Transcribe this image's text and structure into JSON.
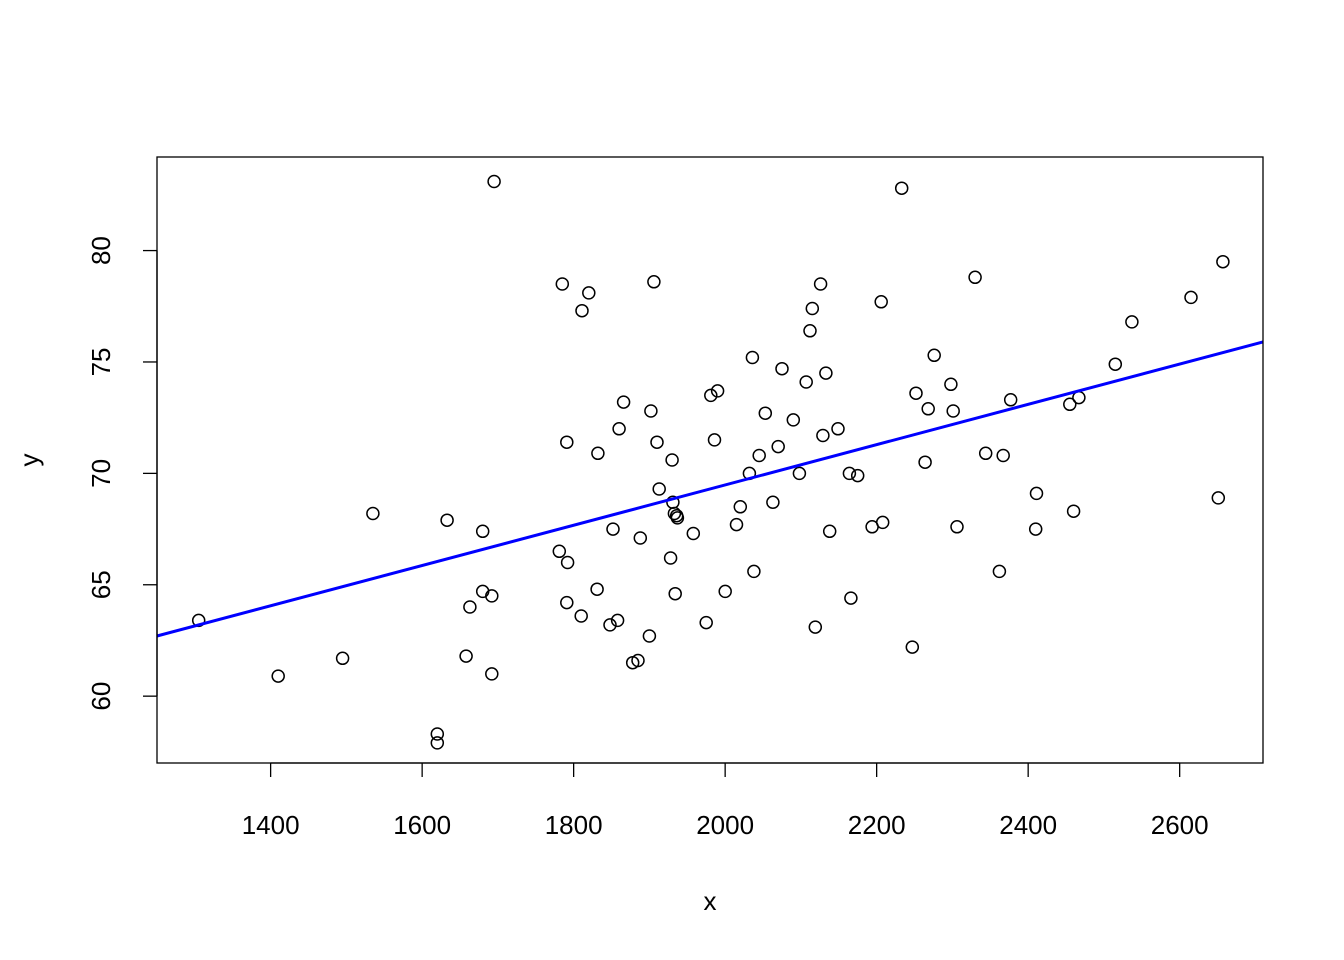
{
  "chart_data": {
    "type": "scatter",
    "title": "",
    "xlabel": "x",
    "ylabel": "y",
    "xlim": [
      1250,
      2710
    ],
    "ylim": [
      57,
      84.2
    ],
    "x_ticks": [
      1400,
      1600,
      1800,
      2000,
      2200,
      2400,
      2600
    ],
    "y_ticks": [
      60,
      65,
      70,
      75,
      80
    ],
    "grid": false,
    "legend": "none",
    "point_style": "open-circle",
    "point_color": "#000000",
    "fit_line": {
      "color": "#0000FF",
      "x": [
        1250,
        2710
      ],
      "y": [
        62.7,
        75.9
      ]
    },
    "points": [
      [
        1305,
        63.4
      ],
      [
        1410,
        60.9
      ],
      [
        1495,
        61.7
      ],
      [
        1535,
        68.2
      ],
      [
        1620,
        58.3
      ],
      [
        1620,
        57.9
      ],
      [
        1633,
        67.9
      ],
      [
        1658,
        61.8
      ],
      [
        1663,
        64.0
      ],
      [
        1680,
        64.7
      ],
      [
        1680,
        67.4
      ],
      [
        1692,
        64.5
      ],
      [
        1692,
        61.0
      ],
      [
        1695,
        83.1
      ],
      [
        1781,
        66.5
      ],
      [
        1785,
        78.5
      ],
      [
        1791,
        71.4
      ],
      [
        1791,
        64.2
      ],
      [
        1792,
        66.0
      ],
      [
        1810,
        63.6
      ],
      [
        1811,
        77.3
      ],
      [
        1820,
        78.1
      ],
      [
        1831,
        64.8
      ],
      [
        1832,
        70.9
      ],
      [
        1848,
        63.2
      ],
      [
        1852,
        67.5
      ],
      [
        1858,
        63.4
      ],
      [
        1860,
        72.0
      ],
      [
        1866,
        73.2
      ],
      [
        1878,
        61.5
      ],
      [
        1885,
        61.6
      ],
      [
        1888,
        67.1
      ],
      [
        1900,
        62.7
      ],
      [
        1902,
        72.8
      ],
      [
        1906,
        78.6
      ],
      [
        1910,
        71.4
      ],
      [
        1913,
        69.3
      ],
      [
        1928,
        66.2
      ],
      [
        1930,
        70.6
      ],
      [
        1931,
        68.7
      ],
      [
        1933,
        68.2
      ],
      [
        1934,
        64.6
      ],
      [
        1936,
        68.1
      ],
      [
        1937,
        68.0
      ],
      [
        1958,
        67.3
      ],
      [
        1975,
        63.3
      ],
      [
        1981,
        73.5
      ],
      [
        1986,
        71.5
      ],
      [
        1990,
        73.7
      ],
      [
        2000,
        64.7
      ],
      [
        2015,
        67.7
      ],
      [
        2020,
        68.5
      ],
      [
        2032,
        70.0
      ],
      [
        2036,
        75.2
      ],
      [
        2038,
        65.6
      ],
      [
        2045,
        70.8
      ],
      [
        2053,
        72.7
      ],
      [
        2063,
        68.7
      ],
      [
        2070,
        71.2
      ],
      [
        2075,
        74.7
      ],
      [
        2090,
        72.4
      ],
      [
        2098,
        70.0
      ],
      [
        2107,
        74.1
      ],
      [
        2112,
        76.4
      ],
      [
        2115,
        77.4
      ],
      [
        2119,
        63.1
      ],
      [
        2126,
        78.5
      ],
      [
        2129,
        71.7
      ],
      [
        2133,
        74.5
      ],
      [
        2138,
        67.4
      ],
      [
        2149,
        72.0
      ],
      [
        2164,
        70.0
      ],
      [
        2166,
        64.4
      ],
      [
        2175,
        69.9
      ],
      [
        2194,
        67.6
      ],
      [
        2206,
        77.7
      ],
      [
        2208,
        67.8
      ],
      [
        2233,
        82.8
      ],
      [
        2247,
        62.2
      ],
      [
        2252,
        73.6
      ],
      [
        2264,
        70.5
      ],
      [
        2268,
        72.9
      ],
      [
        2276,
        75.3
      ],
      [
        2298,
        74.0
      ],
      [
        2301,
        72.8
      ],
      [
        2306,
        67.6
      ],
      [
        2330,
        78.8
      ],
      [
        2344,
        70.9
      ],
      [
        2362,
        65.6
      ],
      [
        2367,
        70.8
      ],
      [
        2377,
        73.3
      ],
      [
        2410,
        67.5
      ],
      [
        2411,
        69.1
      ],
      [
        2455,
        73.1
      ],
      [
        2460,
        68.3
      ],
      [
        2467,
        73.4
      ],
      [
        2515,
        74.9
      ],
      [
        2537,
        76.8
      ],
      [
        2615,
        77.9
      ],
      [
        2651,
        68.9
      ],
      [
        2657,
        79.5
      ]
    ]
  }
}
